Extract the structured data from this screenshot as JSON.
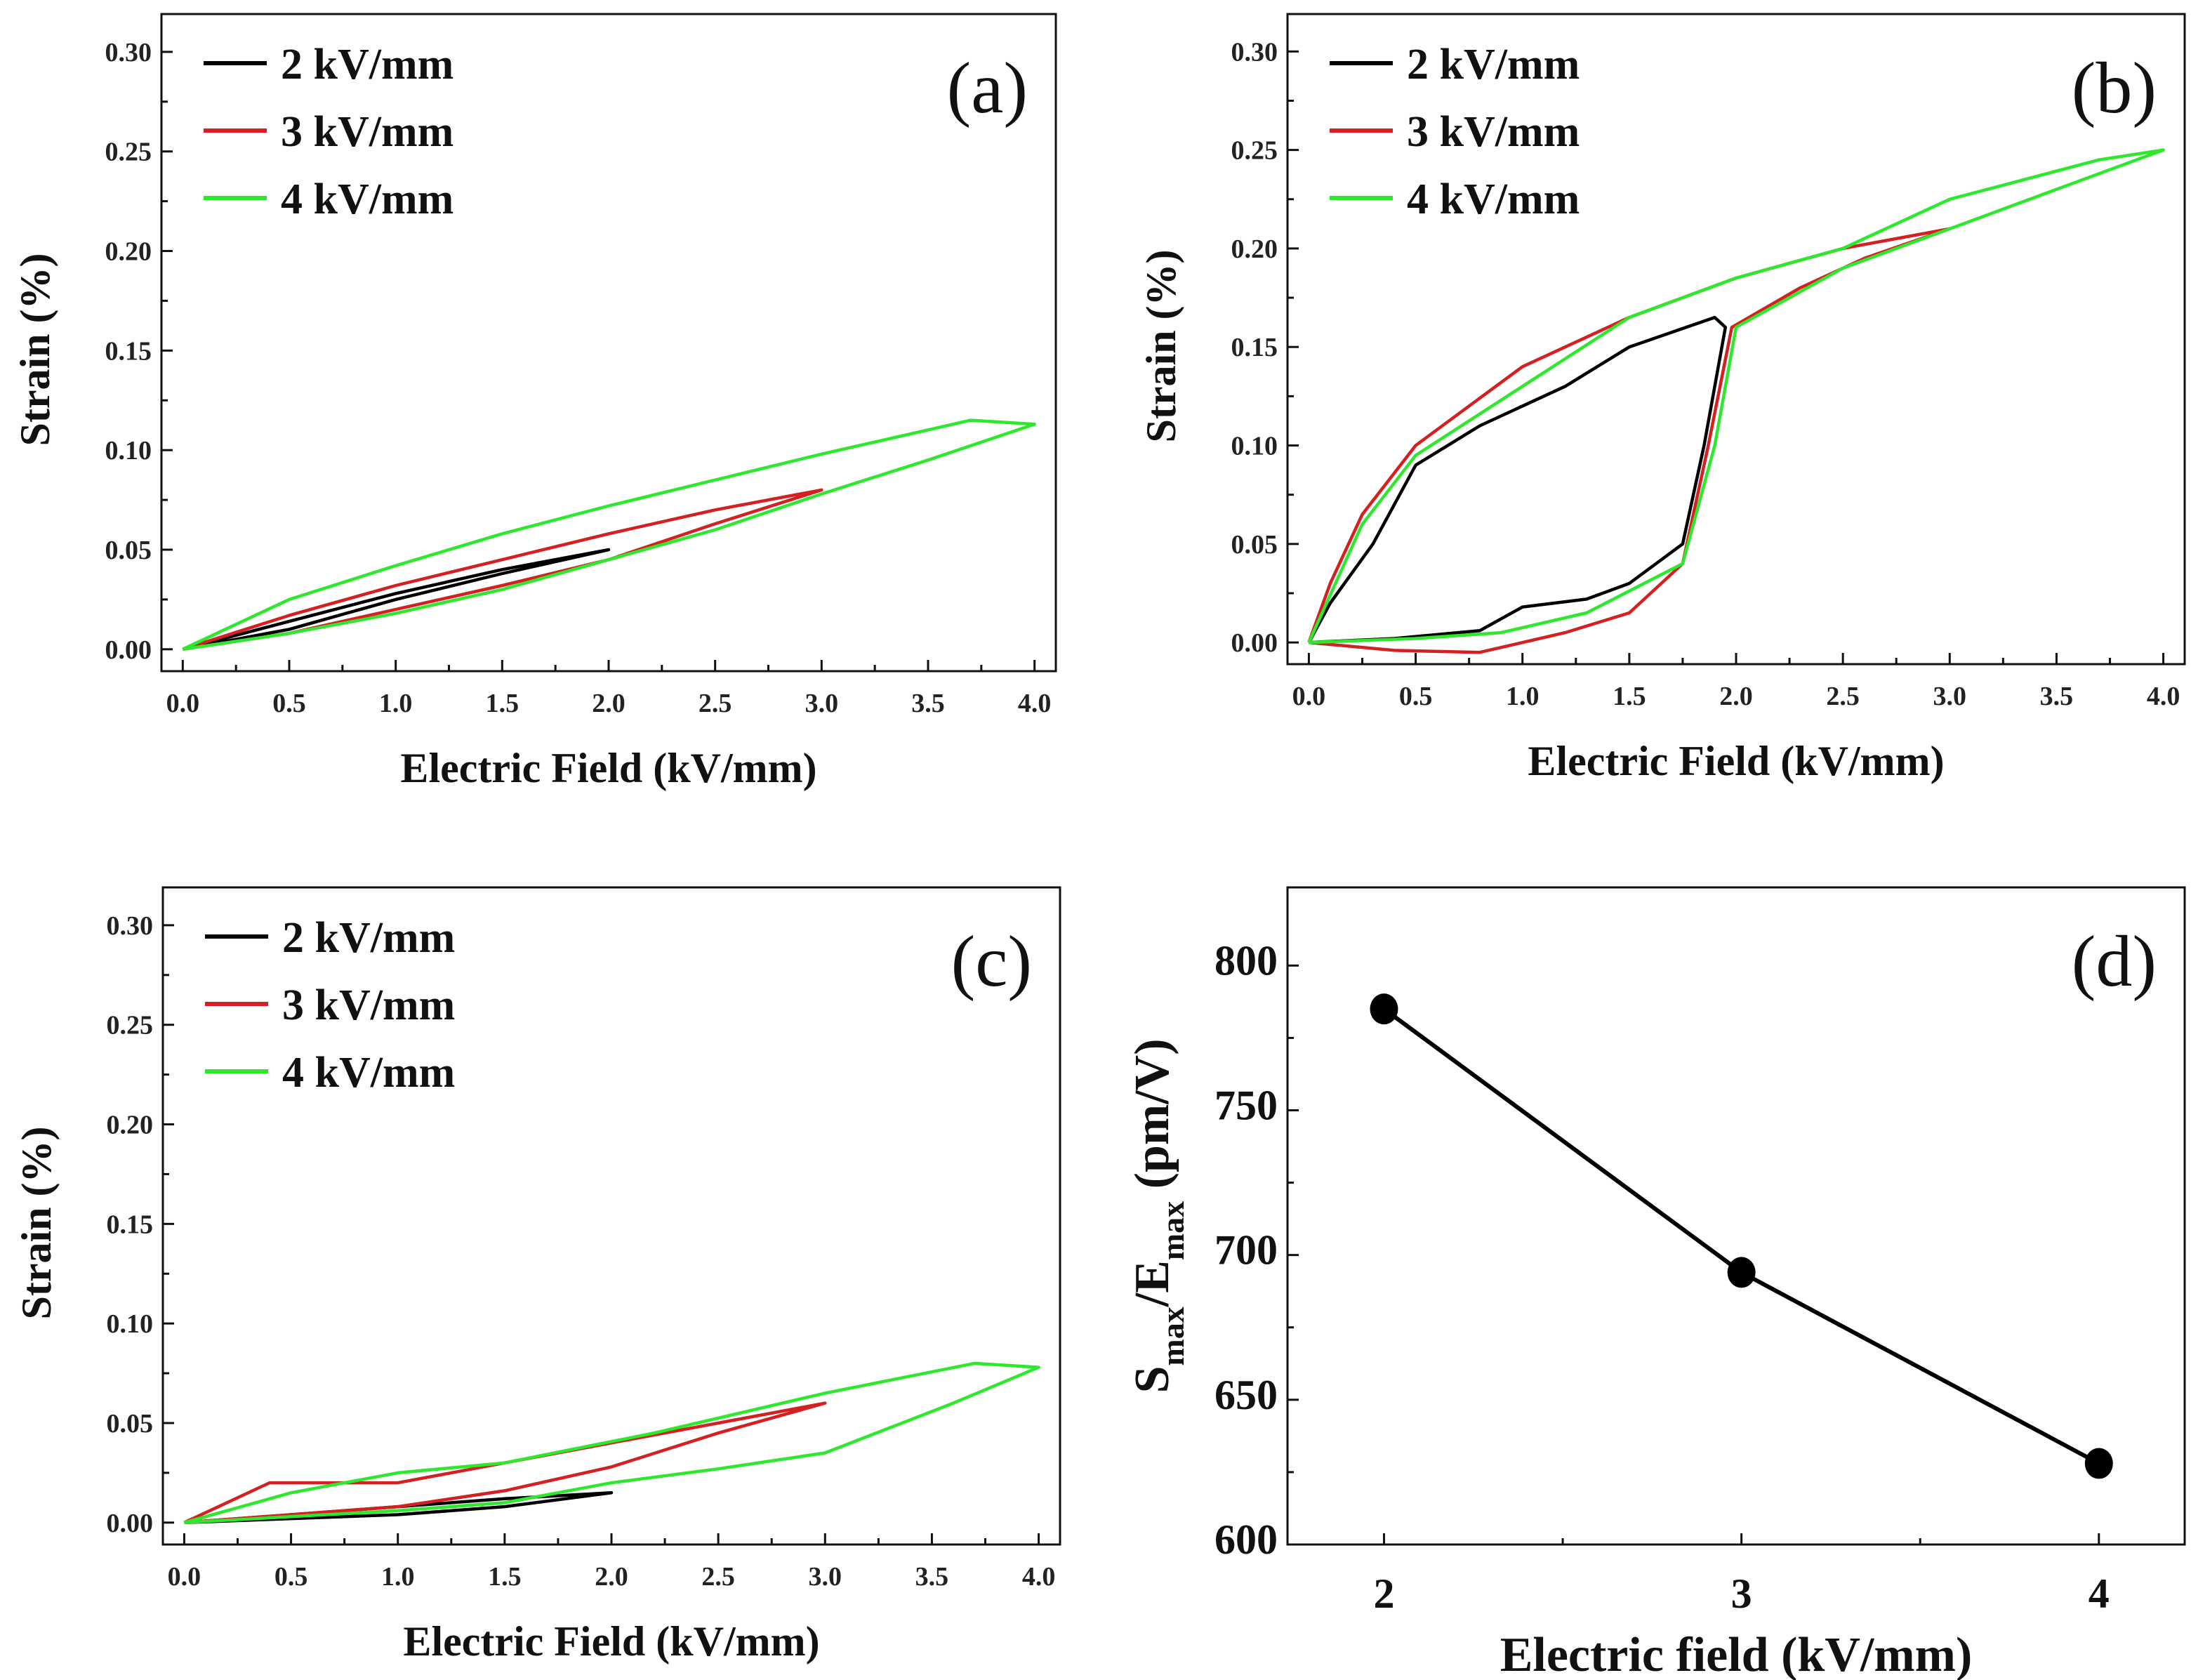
{
  "chart_data": [
    {
      "panel_label": "(a)",
      "type": "line",
      "xlabel": "Electric Field (kV/mm)",
      "ylabel": "Strain (%)",
      "xlim": [
        -0.1,
        4.1
      ],
      "ylim": [
        -0.011,
        0.319
      ],
      "xticks": [
        "0.0",
        "0.5",
        "1.0",
        "1.5",
        "2.0",
        "2.5",
        "3.0",
        "3.5",
        "4.0"
      ],
      "yticks": [
        "0.00",
        "0.05",
        "0.10",
        "0.15",
        "0.20",
        "0.25",
        "0.30"
      ],
      "legend_position": "top-left",
      "series": [
        {
          "name": "2 kV/mm",
          "color": "#000000",
          "x": [
            0,
            0.5,
            1.0,
            1.5,
            2.0,
            1.5,
            1.0,
            0.5,
            0
          ],
          "y": [
            0,
            0.01,
            0.025,
            0.038,
            0.05,
            0.04,
            0.028,
            0.014,
            0
          ]
        },
        {
          "name": "3 kV/mm",
          "color": "#d42020",
          "x": [
            0,
            0.5,
            1.0,
            1.5,
            2.0,
            2.5,
            3.0,
            2.5,
            2.0,
            1.5,
            1.0,
            0.5,
            0
          ],
          "y": [
            0,
            0.008,
            0.02,
            0.032,
            0.045,
            0.063,
            0.08,
            0.07,
            0.058,
            0.045,
            0.032,
            0.017,
            0
          ]
        },
        {
          "name": "4 kV/mm",
          "color": "#2ee82e",
          "x": [
            0,
            0.5,
            1.0,
            1.5,
            2.0,
            2.5,
            3.0,
            3.5,
            4.0,
            3.7,
            3.0,
            2.5,
            2.0,
            1.5,
            1.0,
            0.5,
            0
          ],
          "y": [
            0,
            0.008,
            0.018,
            0.03,
            0.045,
            0.06,
            0.078,
            0.095,
            0.113,
            0.115,
            0.098,
            0.085,
            0.072,
            0.058,
            0.042,
            0.025,
            0
          ]
        }
      ]
    },
    {
      "panel_label": "(b)",
      "type": "line",
      "xlabel": "Electric Field (kV/mm)",
      "ylabel": "Strain (%)",
      "xlim": [
        -0.1,
        4.1
      ],
      "ylim": [
        -0.011,
        0.319
      ],
      "xticks": [
        "0.0",
        "0.5",
        "1.0",
        "1.5",
        "2.0",
        "2.5",
        "3.0",
        "3.5",
        "4.0"
      ],
      "yticks": [
        "0.00",
        "0.05",
        "0.10",
        "0.15",
        "0.20",
        "0.25",
        "0.30"
      ],
      "legend_position": "top-left",
      "series": [
        {
          "name": "2 kV/mm",
          "color": "#000000",
          "x": [
            0,
            0.4,
            0.8,
            1.0,
            1.3,
            1.5,
            1.75,
            1.85,
            1.95,
            1.9,
            1.5,
            1.2,
            0.8,
            0.5,
            0.3,
            0.1,
            0
          ],
          "y": [
            0,
            0.002,
            0.006,
            0.018,
            0.022,
            0.03,
            0.05,
            0.1,
            0.16,
            0.165,
            0.15,
            0.13,
            0.11,
            0.09,
            0.05,
            0.02,
            0
          ]
        },
        {
          "name": "3 kV/mm",
          "color": "#d42020",
          "x": [
            0,
            0.4,
            0.8,
            1.2,
            1.5,
            1.75,
            1.87,
            1.98,
            2.3,
            2.6,
            3.0,
            2.5,
            2.0,
            1.5,
            1.0,
            0.5,
            0.25,
            0.1,
            0
          ],
          "y": [
            0,
            -0.004,
            -0.005,
            0.005,
            0.015,
            0.04,
            0.1,
            0.16,
            0.18,
            0.195,
            0.21,
            0.2,
            0.185,
            0.165,
            0.14,
            0.1,
            0.065,
            0.03,
            0
          ]
        },
        {
          "name": "4 kV/mm",
          "color": "#2ee82e",
          "x": [
            0,
            0.5,
            0.9,
            1.3,
            1.75,
            1.9,
            2.0,
            2.5,
            3.0,
            3.5,
            4.0,
            3.7,
            3.0,
            2.5,
            2.0,
            1.5,
            1.0,
            0.5,
            0.25,
            0
          ],
          "y": [
            0,
            0.002,
            0.005,
            0.015,
            0.04,
            0.1,
            0.16,
            0.19,
            0.21,
            0.23,
            0.25,
            0.245,
            0.225,
            0.2,
            0.185,
            0.165,
            0.13,
            0.095,
            0.06,
            0
          ]
        }
      ]
    },
    {
      "panel_label": "(c)",
      "type": "line",
      "xlabel": "Electric Field (kV/mm)",
      "ylabel": "Strain (%)",
      "xlim": [
        -0.1,
        4.1
      ],
      "ylim": [
        -0.011,
        0.319
      ],
      "xticks": [
        "0.0",
        "0.5",
        "1.0",
        "1.5",
        "2.0",
        "2.5",
        "3.0",
        "3.5",
        "4.0"
      ],
      "yticks": [
        "0.00",
        "0.05",
        "0.10",
        "0.15",
        "0.20",
        "0.25",
        "0.30"
      ],
      "legend_position": "top-left",
      "series": [
        {
          "name": "2 kV/mm",
          "color": "#000000",
          "x": [
            0,
            0.5,
            1.0,
            1.5,
            2.0,
            1.5,
            1.0,
            0.5,
            0
          ],
          "y": [
            0,
            0.002,
            0.004,
            0.008,
            0.015,
            0.012,
            0.008,
            0.004,
            0
          ]
        },
        {
          "name": "3 kV/mm",
          "color": "#d42020",
          "x": [
            0,
            0.5,
            1.0,
            1.5,
            2.0,
            2.5,
            3.0,
            2.5,
            2.0,
            1.5,
            1.0,
            0.4,
            0
          ],
          "y": [
            0,
            0.004,
            0.008,
            0.016,
            0.028,
            0.045,
            0.06,
            0.05,
            0.04,
            0.03,
            0.02,
            0.02,
            0
          ]
        },
        {
          "name": "4 kV/mm",
          "color": "#2ee82e",
          "x": [
            0,
            0.5,
            1.0,
            1.5,
            2.0,
            2.5,
            3.0,
            3.6,
            4.0,
            3.7,
            3.0,
            2.2,
            1.5,
            1.0,
            0.5,
            0
          ],
          "y": [
            0,
            0.003,
            0.006,
            0.01,
            0.02,
            0.027,
            0.035,
            0.06,
            0.078,
            0.08,
            0.065,
            0.045,
            0.03,
            0.025,
            0.015,
            0
          ]
        }
      ]
    },
    {
      "panel_label": "(d)",
      "type": "line",
      "xlabel": "Electric field (kV/mm)",
      "ylabel": "Smax/Emax (pm/V)",
      "ylabel_parts": {
        "s": "S",
        "sub1": "max",
        "mid": "/E",
        "sub2": "max",
        "unit": " (pm/V)"
      },
      "xlim": [
        1.73,
        4.24
      ],
      "ylim": [
        600,
        827
      ],
      "xticks": [
        "2",
        "3",
        "4"
      ],
      "yticks": [
        "600",
        "650",
        "700",
        "750",
        "800"
      ],
      "series": [
        {
          "color": "#000000",
          "x": [
            2,
            3,
            4
          ],
          "y": [
            785,
            694,
            628
          ]
        }
      ]
    }
  ]
}
